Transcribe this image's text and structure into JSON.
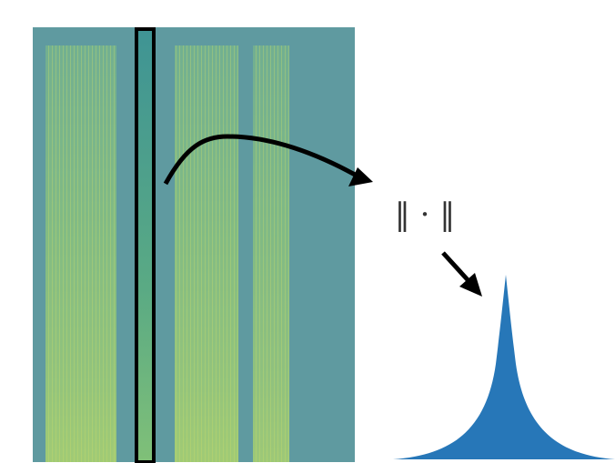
{
  "norm_symbol": "‖ · ‖"
}
